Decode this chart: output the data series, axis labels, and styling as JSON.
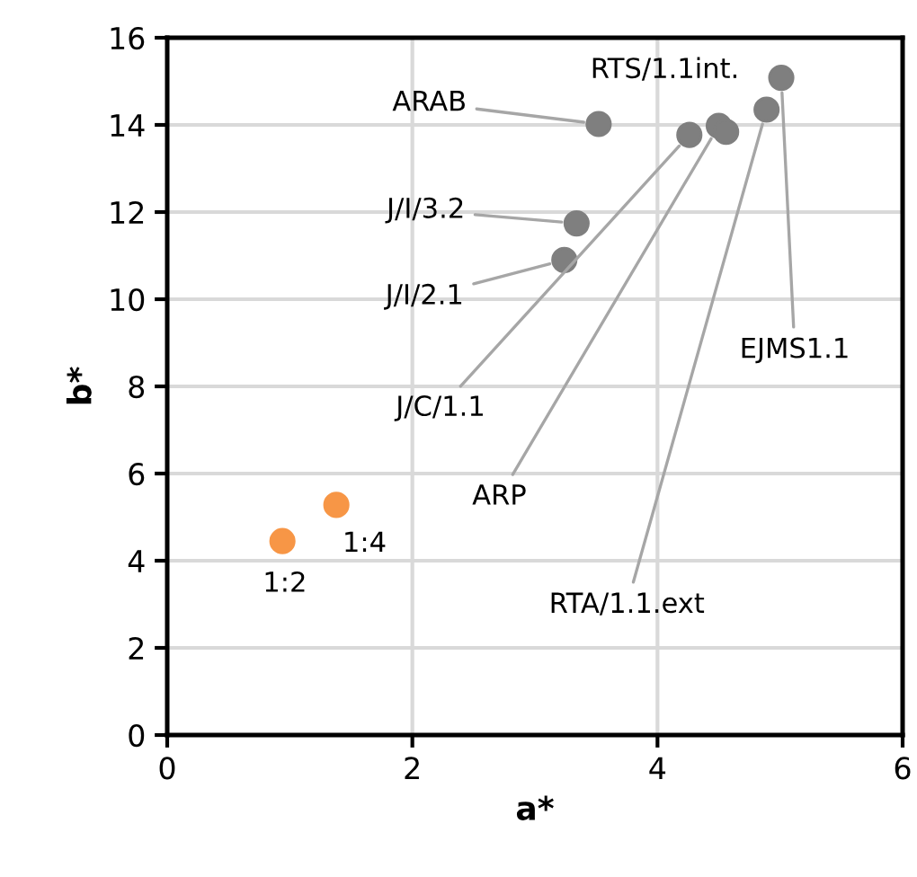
{
  "chart_data": {
    "type": "scatter",
    "xlabel": "a*",
    "ylabel": "b*",
    "xlim": [
      0,
      6
    ],
    "ylim": [
      0,
      16
    ],
    "xticks": [
      0,
      2,
      4,
      6
    ],
    "yticks": [
      0,
      2,
      4,
      6,
      8,
      10,
      12,
      14,
      16
    ],
    "grid": true,
    "marker": "circle",
    "series": [
      {
        "color": "#7f7f7f",
        "x": [
          3.52,
          3.34,
          3.24,
          4.26,
          4.5,
          4.56,
          4.89,
          5.01
        ],
        "values": [
          14.02,
          11.74,
          10.9,
          13.77,
          13.98,
          13.84,
          14.35,
          15.08
        ]
      },
      {
        "color": "#f79646",
        "x": [
          0.94,
          1.38
        ],
        "values": [
          4.45,
          5.28
        ]
      }
    ],
    "annotations": [
      {
        "text": "ARAB",
        "x": 3.52,
        "y": 14.02
      },
      {
        "text": "J/I/3.2",
        "x": 3.34,
        "y": 11.74
      },
      {
        "text": "J/I/2.1",
        "x": 3.24,
        "y": 10.9
      },
      {
        "text": "J/C/1.1",
        "x": 4.26,
        "y": 13.77
      },
      {
        "text": "ARP",
        "x": 4.5,
        "y": 13.98
      },
      {
        "text": "RTS/1.1int.",
        "x": 4.56,
        "y": 13.84
      },
      {
        "text": "RTA/1.1.ext",
        "x": 4.89,
        "y": 14.35
      },
      {
        "text": "EJMS1.1",
        "x": 5.01,
        "y": 15.08
      },
      {
        "text": "1:2",
        "x": 0.94,
        "y": 4.45
      },
      {
        "text": "1:4",
        "x": 1.38,
        "y": 5.28
      }
    ]
  }
}
